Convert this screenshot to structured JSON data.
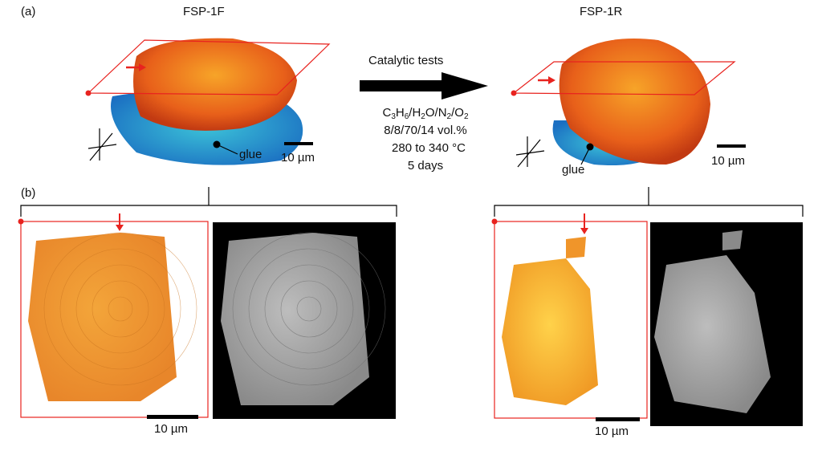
{
  "panel_a": {
    "label": "(a)",
    "left_title": "FSP-1F",
    "right_title": "FSP-1R",
    "glue_label": "glue",
    "scale_label": "10 µm",
    "arrow_title": "Catalytic tests",
    "formula": [
      "C",
      "3",
      "H",
      "6",
      "/H",
      "2",
      "O/N",
      "2",
      "/O",
      "2"
    ],
    "composition": "8/8/70/14 vol.%",
    "temperature": "280 to 340 °C",
    "duration": "5 days"
  },
  "panel_b": {
    "label": "(b)",
    "scale_label": "10 µm"
  },
  "colors": {
    "highlight": "#e8231f",
    "particle": "#e8701a",
    "glue": "#2a9fd0",
    "arrow": "#000000"
  }
}
